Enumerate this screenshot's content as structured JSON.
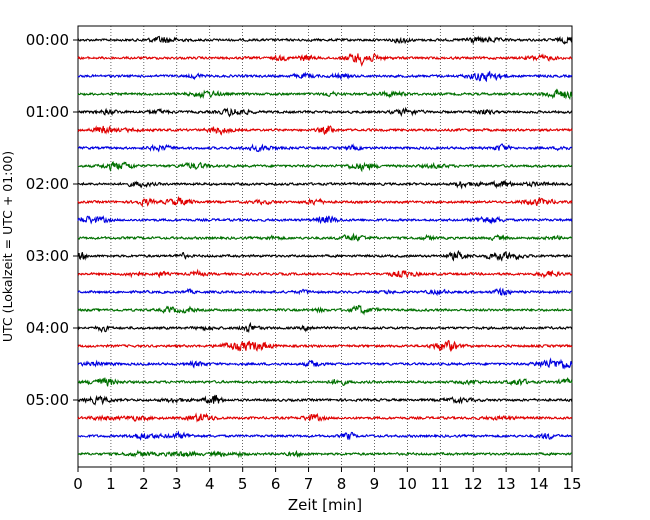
{
  "chart_data": {
    "type": "line",
    "subtype": "helicorder",
    "title": "",
    "xlabel": "Zeit  [min]",
    "ylabel": "UTC (Lokalzeit = UTC + 01:00)",
    "xlim": [
      0,
      15
    ],
    "x_ticks": [
      "0",
      "1",
      "2",
      "3",
      "4",
      "5",
      "6",
      "7",
      "8",
      "9",
      "10",
      "11",
      "12",
      "13",
      "14",
      "15"
    ],
    "y_ticks": [
      "00:00",
      "01:00",
      "02:00",
      "03:00",
      "04:00",
      "05:00"
    ],
    "minutes_per_line": 15,
    "grid": "vertical dotted lines at each minute",
    "trace_colors": [
      "#000000",
      "#e00000",
      "#0000e0",
      "#007000"
    ],
    "traces": [
      {
        "start": "00:00",
        "color": "#000000"
      },
      {
        "start": "00:15",
        "color": "#e00000"
      },
      {
        "start": "00:30",
        "color": "#0000e0"
      },
      {
        "start": "00:45",
        "color": "#007000"
      },
      {
        "start": "01:00",
        "color": "#000000"
      },
      {
        "start": "01:15",
        "color": "#e00000"
      },
      {
        "start": "01:30",
        "color": "#0000e0"
      },
      {
        "start": "01:45",
        "color": "#007000"
      },
      {
        "start": "02:00",
        "color": "#000000"
      },
      {
        "start": "02:15",
        "color": "#e00000"
      },
      {
        "start": "02:30",
        "color": "#0000e0"
      },
      {
        "start": "02:45",
        "color": "#007000"
      },
      {
        "start": "03:00",
        "color": "#000000"
      },
      {
        "start": "03:15",
        "color": "#e00000"
      },
      {
        "start": "03:30",
        "color": "#0000e0"
      },
      {
        "start": "03:45",
        "color": "#007000"
      },
      {
        "start": "04:00",
        "color": "#000000"
      },
      {
        "start": "04:15",
        "color": "#e00000"
      },
      {
        "start": "04:30",
        "color": "#0000e0"
      },
      {
        "start": "04:45",
        "color": "#007000"
      },
      {
        "start": "05:00",
        "color": "#000000"
      },
      {
        "start": "05:15",
        "color": "#e00000"
      },
      {
        "start": "05:30",
        "color": "#0000e0"
      },
      {
        "start": "05:45",
        "color": "#007000"
      }
    ]
  }
}
